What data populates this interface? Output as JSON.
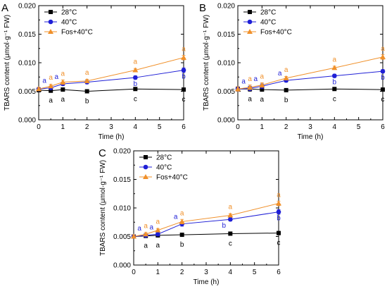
{
  "colors": {
    "s28": "#000000",
    "s40": "#1f1fd6",
    "sFos": "#f0902a"
  },
  "chart_data": [
    {
      "type": "line",
      "panel": "A",
      "xlabel": "Time (h)",
      "ylabel": "TBARS content (μmol·g⁻¹ FW)",
      "xlim": [
        0,
        6
      ],
      "ylim": [
        0,
        0.02
      ],
      "xticks": [
        "0",
        "1",
        "2",
        "3",
        "4",
        "5",
        "6"
      ],
      "yticks": [
        "0.000",
        "0.005",
        "0.010",
        "0.015",
        "0.020"
      ],
      "x": [
        0,
        0.5,
        1,
        2,
        4,
        6
      ],
      "legend_position": "top-left",
      "series": [
        {
          "name": "28°C",
          "marker": "square",
          "color": "#000000",
          "values": [
            0.0052,
            0.0051,
            0.0053,
            0.005,
            0.0054,
            0.0053
          ],
          "errors": [
            0.0003,
            0.0003,
            0.0003,
            0.0003,
            0.0002,
            0.0002
          ],
          "letters": [
            "",
            "a",
            "a",
            "b",
            "c",
            "c"
          ]
        },
        {
          "name": "40°C",
          "marker": "circle",
          "color": "#1f1fd6",
          "values": [
            0.0054,
            0.0056,
            0.0063,
            0.0066,
            0.0074,
            0.0087
          ],
          "errors": [
            0.0003,
            0.0003,
            0.0003,
            0.0003,
            0.0003,
            0.0004
          ],
          "letters": [
            "",
            "a",
            "a",
            "",
            "b",
            "b"
          ]
        },
        {
          "name": "Fos+40°C",
          "marker": "triangle",
          "color": "#f0902a",
          "values": [
            0.0054,
            0.0059,
            0.0066,
            0.0068,
            0.0087,
            0.0109
          ],
          "errors": [
            0.0003,
            0.0003,
            0.0004,
            0.0003,
            0.0003,
            0.0004
          ],
          "letters": [
            "",
            "a",
            "a",
            "a",
            "a",
            "a"
          ]
        }
      ]
    },
    {
      "type": "line",
      "panel": "B",
      "xlabel": "Time (h)",
      "ylabel": "TBARS content (μmol·g⁻¹ FW)",
      "xlim": [
        0,
        6
      ],
      "ylim": [
        0,
        0.02
      ],
      "xticks": [
        "0",
        "1",
        "2",
        "3",
        "4",
        "5",
        "6"
      ],
      "yticks": [
        "0.000",
        "0.005",
        "0.010",
        "0.015",
        "0.020"
      ],
      "x": [
        0,
        0.5,
        1,
        2,
        4,
        6
      ],
      "legend_position": "top-left",
      "series": [
        {
          "name": "28°C",
          "marker": "square",
          "color": "#000000",
          "values": [
            0.0054,
            0.0054,
            0.0053,
            0.0052,
            0.0054,
            0.0053
          ],
          "errors": [
            0.0004,
            0.0004,
            0.0003,
            0.0003,
            0.0002,
            0.0002
          ],
          "letters": [
            "",
            "a",
            "a",
            "b",
            "c",
            "c"
          ]
        },
        {
          "name": "40°C",
          "marker": "circle",
          "color": "#1f1fd6",
          "values": [
            0.0054,
            0.0055,
            0.0059,
            0.0069,
            0.0077,
            0.0085
          ],
          "errors": [
            0.0004,
            0.0004,
            0.0004,
            0.0003,
            0.0003,
            0.0003
          ],
          "letters": [
            "",
            "a",
            "a",
            "a",
            "b",
            "b"
          ]
        },
        {
          "name": "Fos+40°C",
          "marker": "triangle",
          "color": "#f0902a",
          "values": [
            0.0054,
            0.0057,
            0.0061,
            0.0073,
            0.0091,
            0.011
          ],
          "errors": [
            0.0004,
            0.0004,
            0.0004,
            0.0003,
            0.0003,
            0.0004
          ],
          "letters": [
            "",
            "a",
            "a",
            "a",
            "a",
            "a"
          ]
        }
      ]
    },
    {
      "type": "line",
      "panel": "C",
      "xlabel": "Time (h)",
      "ylabel": "TBARS content (μmol·g⁻¹ FW)",
      "xlim": [
        0,
        6
      ],
      "ylim": [
        0,
        0.02
      ],
      "xticks": [
        "0",
        "1",
        "2",
        "3",
        "4",
        "5",
        "6"
      ],
      "yticks": [
        "0.000",
        "0.005",
        "0.010",
        "0.015",
        "0.020"
      ],
      "x": [
        0,
        0.5,
        1,
        2,
        4,
        6
      ],
      "legend_position": "top-left",
      "series": [
        {
          "name": "28°C",
          "marker": "square",
          "color": "#000000",
          "values": [
            0.005,
            0.0051,
            0.0052,
            0.0053,
            0.0055,
            0.0056
          ],
          "errors": [
            0.0003,
            0.0003,
            0.0003,
            0.0002,
            0.0002,
            0.0003
          ],
          "letters": [
            "",
            "a",
            "a",
            "b",
            "c",
            "c"
          ]
        },
        {
          "name": "40°C",
          "marker": "circle",
          "color": "#1f1fd6",
          "values": [
            0.005,
            0.0052,
            0.0054,
            0.0072,
            0.008,
            0.0093
          ],
          "errors": [
            0.0003,
            0.0003,
            0.0003,
            0.0004,
            0.0003,
            0.0004
          ],
          "letters": [
            "",
            "a",
            "a",
            "a",
            "b",
            "b"
          ]
        },
        {
          "name": "Fos+40°C",
          "marker": "triangle",
          "color": "#f0902a",
          "values": [
            0.005,
            0.0054,
            0.0061,
            0.0076,
            0.0087,
            0.0108
          ],
          "errors": [
            0.0003,
            0.0003,
            0.0003,
            0.0004,
            0.0003,
            0.0004
          ],
          "letters": [
            "",
            "a",
            "a",
            "a",
            "a",
            "a"
          ]
        }
      ]
    }
  ]
}
